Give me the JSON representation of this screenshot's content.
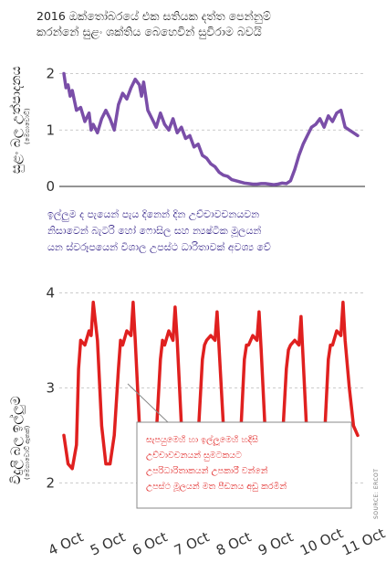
{
  "title_lines": [
    "2016 ඔක්තෝබරයේ එක සතියක දත්ත පෙන්නුම්",
    "කරන්නේ සුළං ශක්තිය බෙහෙවින් සුවිරාම බවයි"
  ],
  "source": "SOURCE: ERCOT",
  "chart_data": [
    {
      "type": "line",
      "ylabel": "සුළං බල උත්පාදනය",
      "yunit": "(මෙගාවොට්)",
      "ylim": [
        0,
        2.3
      ],
      "yticks": [
        0,
        1,
        2
      ],
      "color": "#7a4ea8",
      "annotation_lines": [
        "ඉල්ලුම ද පැයෙන් පැය දිනෙන් දින උච්චාවචනයවන",
        "නිසාවෙන් බැටරි හෝ ෆොසිල සහ න්‍යෂ්ටික මූලයන්",
        "යන ස්වරූපයෙන් විශාල උපස්ථ ධාරිතාවක් අවශ්‍ය වේ"
      ],
      "x": [
        4.0,
        4.05,
        4.1,
        4.15,
        4.2,
        4.3,
        4.4,
        4.5,
        4.6,
        4.65,
        4.7,
        4.8,
        4.9,
        5.0,
        5.1,
        5.2,
        5.3,
        5.4,
        5.5,
        5.6,
        5.7,
        5.8,
        5.85,
        5.9,
        6.0,
        6.1,
        6.2,
        6.3,
        6.4,
        6.5,
        6.6,
        6.7,
        6.8,
        6.9,
        7.0,
        7.1,
        7.2,
        7.3,
        7.4,
        7.5,
        7.6,
        7.7,
        7.8,
        7.9,
        8.0,
        8.1,
        8.2,
        8.3,
        8.4,
        8.5,
        8.6,
        8.7,
        8.8,
        8.9,
        9.0,
        9.1,
        9.2,
        9.3,
        9.4,
        9.5,
        9.6,
        9.7,
        9.8,
        9.9,
        10.0,
        10.1,
        10.2,
        10.3,
        10.4,
        10.5,
        10.6,
        10.7,
        10.8,
        10.9,
        11.0
      ],
      "y": [
        2.0,
        1.75,
        1.8,
        1.6,
        1.7,
        1.35,
        1.4,
        1.15,
        1.3,
        1.0,
        1.1,
        0.95,
        1.2,
        1.35,
        1.2,
        1.0,
        1.45,
        1.65,
        1.55,
        1.75,
        1.9,
        1.8,
        1.6,
        1.85,
        1.35,
        1.2,
        1.05,
        1.3,
        1.1,
        1.0,
        1.2,
        0.95,
        1.05,
        0.85,
        0.9,
        0.7,
        0.75,
        0.55,
        0.5,
        0.4,
        0.35,
        0.25,
        0.2,
        0.18,
        0.12,
        0.1,
        0.08,
        0.06,
        0.05,
        0.04,
        0.04,
        0.05,
        0.05,
        0.04,
        0.03,
        0.04,
        0.06,
        0.05,
        0.1,
        0.3,
        0.55,
        0.75,
        0.9,
        1.05,
        1.1,
        1.2,
        1.05,
        1.25,
        1.15,
        1.3,
        1.35,
        1.05,
        1.0,
        0.95,
        0.9
      ]
    },
    {
      "type": "line",
      "ylabel": "විදුලි බල ඉල්ලුම",
      "yunit": "(මෙගාවොට් ඇතක්)",
      "ylim": [
        1.6,
        4.1
      ],
      "yticks": [
        2,
        3,
        4
      ],
      "color": "#e0201f",
      "categories": [
        "4 Oct",
        "5 Oct",
        "6 Oct",
        "7 Oct",
        "8 Oct",
        "9 Oct",
        "10 Oct",
        "11 Oct"
      ],
      "annotation_lines": [
        "සැපයුමෙහි හා ඉල්ලූමෙහි හදිසි",
        "උච්චාවචනයන් සුමටකයට",
        "උපරිධාරිතාකයන් උපකාරී වන්නේ",
        "උපස්ථ මූලයන් මත පීඩනය අඩු කරමින්"
      ],
      "x": [
        4.0,
        4.1,
        4.2,
        4.3,
        4.35,
        4.4,
        4.5,
        4.6,
        4.65,
        4.7,
        4.8,
        4.9,
        5.0,
        5.1,
        5.2,
        5.3,
        5.35,
        5.4,
        5.5,
        5.6,
        5.65,
        5.7,
        5.8,
        5.9,
        6.0,
        6.1,
        6.2,
        6.3,
        6.35,
        6.4,
        6.5,
        6.6,
        6.65,
        6.7,
        6.8,
        6.9,
        7.0,
        7.1,
        7.2,
        7.3,
        7.35,
        7.4,
        7.5,
        7.6,
        7.65,
        7.7,
        7.8,
        7.9,
        8.0,
        8.1,
        8.2,
        8.3,
        8.35,
        8.4,
        8.5,
        8.6,
        8.65,
        8.7,
        8.8,
        8.9,
        9.0,
        9.1,
        9.2,
        9.3,
        9.35,
        9.4,
        9.5,
        9.6,
        9.65,
        9.7,
        9.8,
        9.9,
        10.0,
        10.1,
        10.2,
        10.3,
        10.35,
        10.4,
        10.5,
        10.6,
        10.65,
        10.7,
        10.8,
        10.9,
        11.0
      ],
      "y": [
        2.5,
        2.2,
        2.15,
        2.4,
        3.2,
        3.5,
        3.45,
        3.6,
        3.55,
        3.9,
        3.5,
        2.6,
        2.2,
        2.2,
        2.5,
        3.2,
        3.5,
        3.45,
        3.6,
        3.55,
        3.9,
        3.5,
        2.6,
        2.2,
        2.15,
        2.2,
        2.5,
        3.3,
        3.5,
        3.45,
        3.6,
        3.5,
        3.85,
        3.5,
        2.6,
        2.2,
        2.1,
        2.2,
        2.5,
        3.3,
        3.45,
        3.5,
        3.55,
        3.5,
        3.8,
        3.4,
        2.6,
        2.2,
        2.1,
        2.1,
        2.4,
        3.3,
        3.45,
        3.45,
        3.55,
        3.5,
        3.8,
        3.4,
        2.5,
        2.1,
        2.05,
        2.1,
        2.4,
        3.2,
        3.4,
        3.45,
        3.5,
        3.45,
        3.75,
        3.3,
        2.4,
        2.1,
        2.05,
        2.1,
        2.4,
        3.3,
        3.45,
        3.45,
        3.6,
        3.55,
        3.9,
        3.5,
        3.0,
        2.6,
        2.5
      ]
    }
  ]
}
